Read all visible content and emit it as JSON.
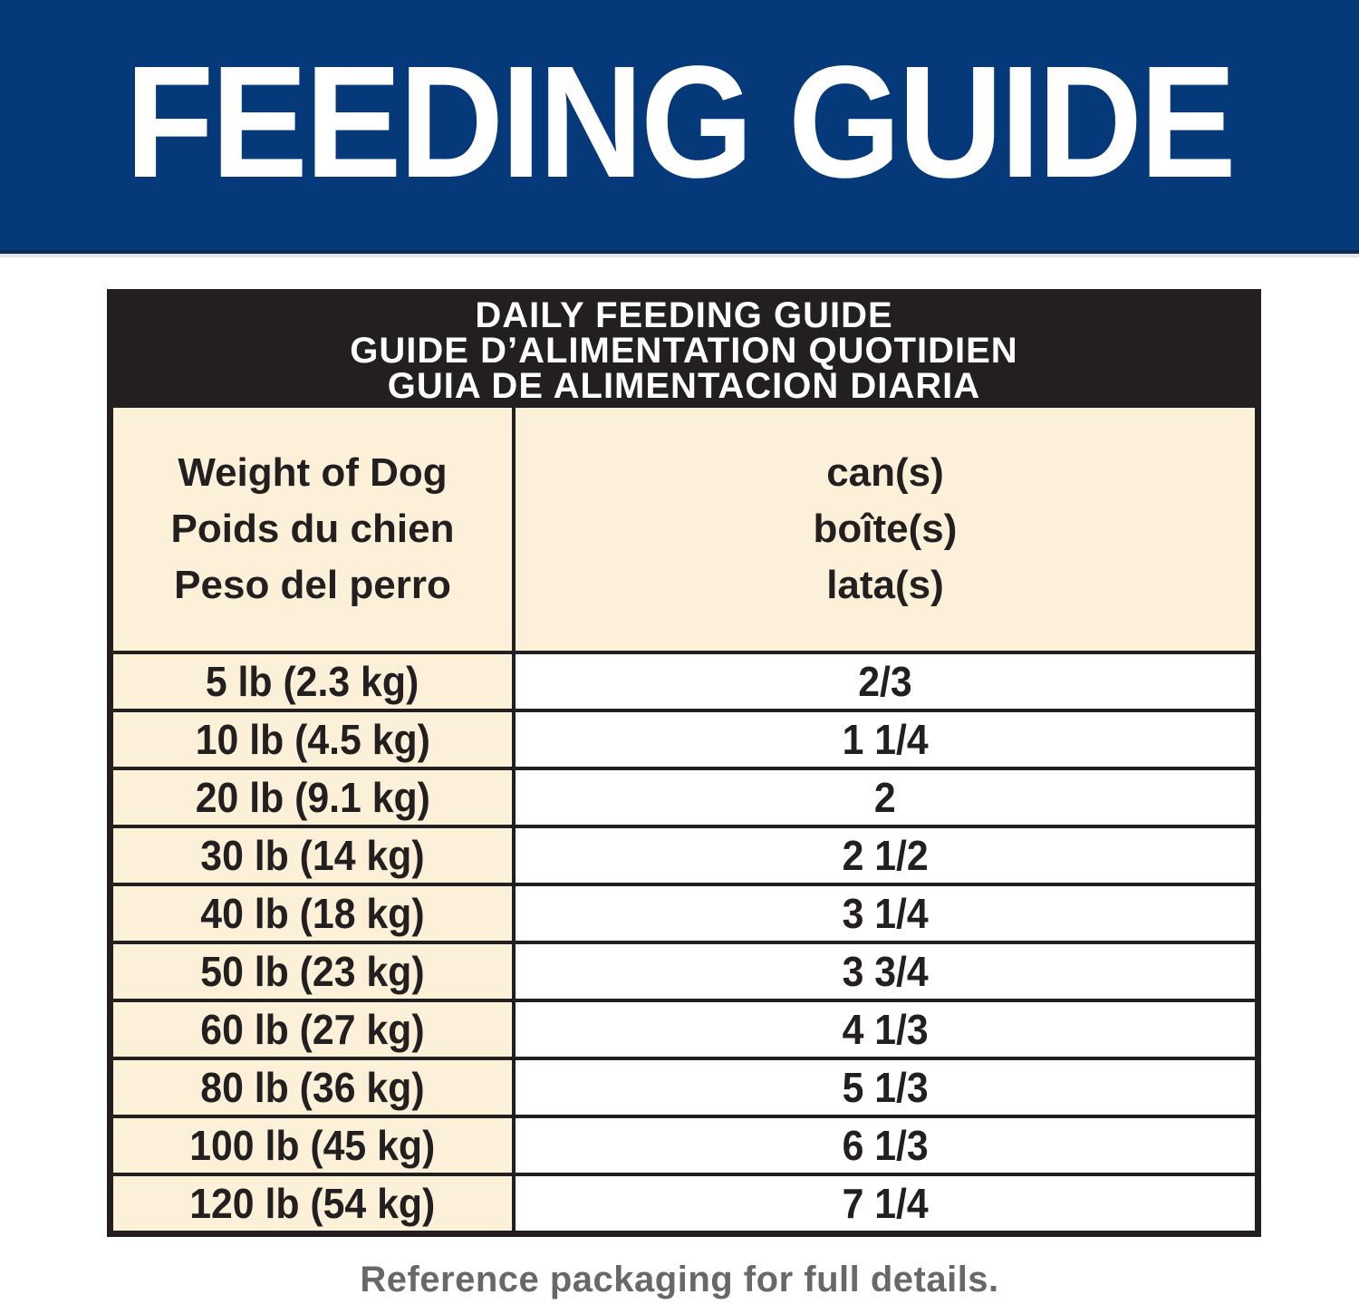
{
  "hero": {
    "title": "FEEDING GUIDE",
    "background_color": "#05397a",
    "text_color": "#ffffff"
  },
  "table": {
    "title_lines": [
      "DAILY FEEDING GUIDE",
      "GUIDE D’ALIMENTATION QUOTIDIEN",
      "GUIA DE ALIMENTACION DIARIA"
    ],
    "title_background_color": "#231f20",
    "header_background_color": "#fcf0d9",
    "col_headers": {
      "weight_lines": [
        "Weight of Dog",
        "Poids du chien",
        "Peso del perro"
      ],
      "cans_lines": [
        "can(s)",
        "boîte(s)",
        "lata(s)"
      ]
    },
    "rows": [
      {
        "weight": "5 lb (2.3 kg)",
        "cans": "2/3"
      },
      {
        "weight": "10 lb (4.5 kg)",
        "cans": "1 1/4"
      },
      {
        "weight": "20 lb (9.1 kg)",
        "cans": "2"
      },
      {
        "weight": "30 lb (14 kg)",
        "cans": "2 1/2"
      },
      {
        "weight": "40 lb (18 kg)",
        "cans": "3 1/4"
      },
      {
        "weight": "50 lb (23 kg)",
        "cans": "3 3/4"
      },
      {
        "weight": "60 lb (27 kg)",
        "cans": "4 1/3"
      },
      {
        "weight": "80 lb (36 kg)",
        "cans": "5 1/3"
      },
      {
        "weight": "100 lb (45 kg)",
        "cans": "6 1/3"
      },
      {
        "weight": "120 lb (54 kg)",
        "cans": "7 1/4"
      }
    ]
  },
  "footer": {
    "note": "Reference packaging for full details.",
    "text_color": "#66686b"
  }
}
